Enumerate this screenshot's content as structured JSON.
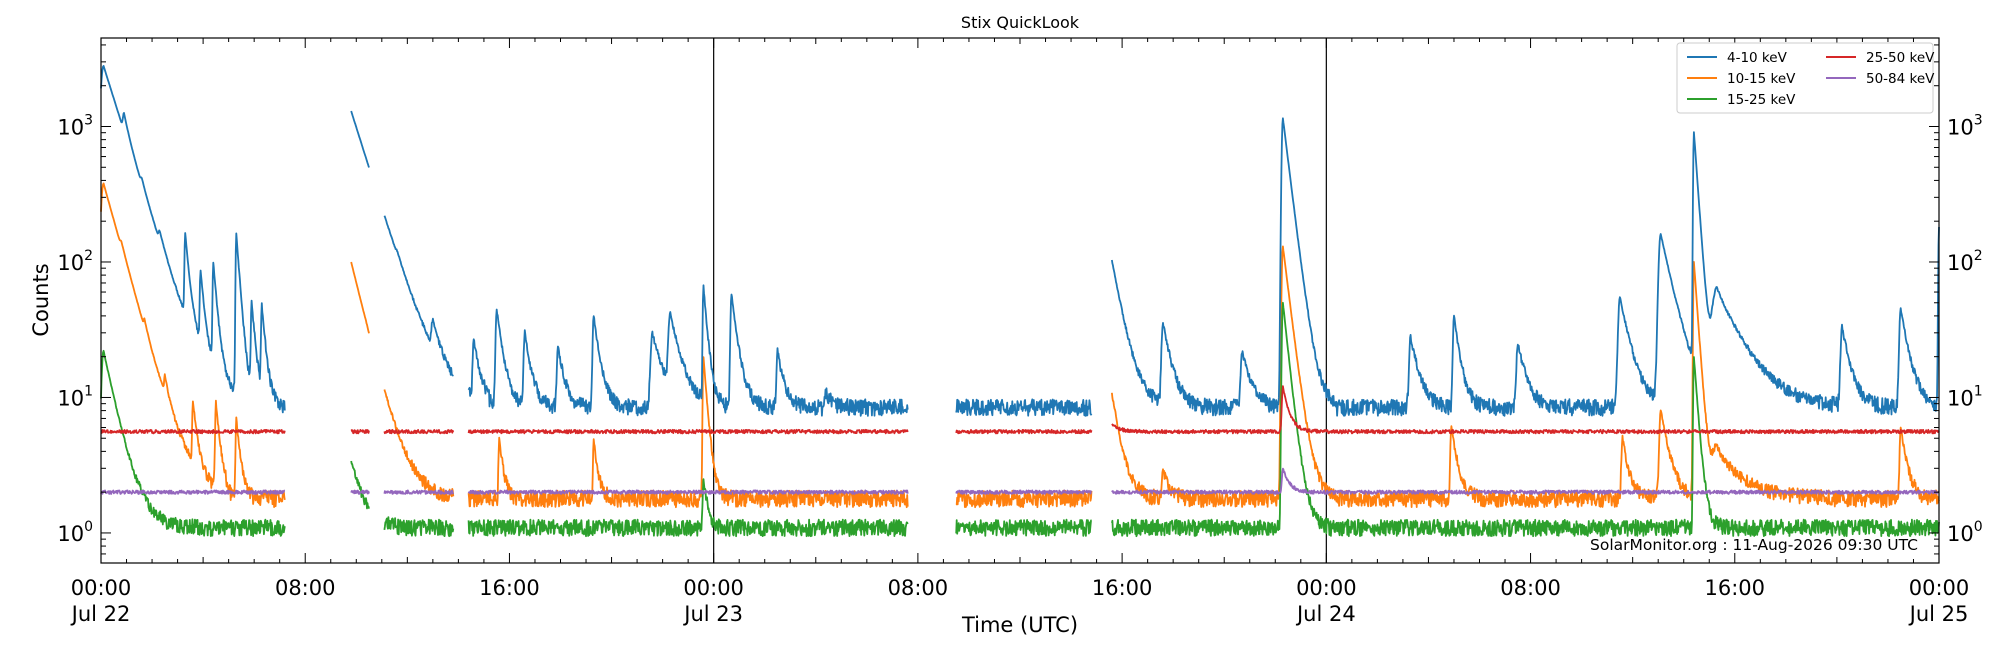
{
  "chart_data": {
    "type": "line",
    "title": "Stix QuickLook",
    "xlabel": "Time (UTC)",
    "ylabel": "Counts",
    "yscale": "log",
    "ylim": [
      0.6,
      4500
    ],
    "xlim_hours": [
      0,
      72
    ],
    "y_ticks": [
      {
        "value": 1,
        "base": "10",
        "exp": "0"
      },
      {
        "value": 10,
        "base": "10",
        "exp": "1"
      },
      {
        "value": 100,
        "base": "10",
        "exp": "2"
      },
      {
        "value": 1000,
        "base": "10",
        "exp": "3"
      }
    ],
    "x_ticks": [
      {
        "hour": 0,
        "time": "00:00",
        "date": "Jul 22"
      },
      {
        "hour": 8,
        "time": "08:00",
        "date": ""
      },
      {
        "hour": 16,
        "time": "16:00",
        "date": ""
      },
      {
        "hour": 24,
        "time": "00:00",
        "date": "Jul 23"
      },
      {
        "hour": 32,
        "time": "08:00",
        "date": ""
      },
      {
        "hour": 40,
        "time": "16:00",
        "date": ""
      },
      {
        "hour": 48,
        "time": "00:00",
        "date": "Jul 24"
      },
      {
        "hour": 56,
        "time": "08:00",
        "date": ""
      },
      {
        "hour": 64,
        "time": "16:00",
        "date": ""
      },
      {
        "hour": 72,
        "time": "00:00",
        "date": "Jul 25"
      }
    ],
    "day_boundaries_hours": [
      24,
      48
    ],
    "data_intervals_hours": [
      [
        0,
        7.2
      ],
      [
        9.8,
        10.5
      ],
      [
        11.1,
        13.8
      ],
      [
        14.4,
        31.6
      ],
      [
        33.5,
        38.8
      ],
      [
        39.6,
        72
      ]
    ],
    "legend_position": "top-right",
    "credit": "SolarMonitor.org : 11-Aug-2026 09:30 UTC",
    "series": [
      {
        "name": "4-10 keV",
        "color": "#1f77b4",
        "baseline": 8.5,
        "flares": [
          [
            0.1,
            2800,
            0.9
          ],
          [
            0.9,
            340,
            0.3
          ],
          [
            1.6,
            50,
            0.3
          ],
          [
            2.3,
            35,
            0.3
          ],
          [
            3.3,
            130,
            0.2
          ],
          [
            3.9,
            70,
            0.2
          ],
          [
            4.4,
            90,
            0.2
          ],
          [
            5.3,
            160,
            0.2
          ],
          [
            5.9,
            48,
            0.2
          ],
          [
            6.3,
            45,
            0.2
          ],
          [
            9.8,
            1300,
            0.9
          ],
          [
            11.6,
            15,
            0.3
          ],
          [
            13.0,
            22,
            0.4
          ],
          [
            14.6,
            25,
            0.3
          ],
          [
            15.5,
            45,
            0.3
          ],
          [
            16.6,
            30,
            0.3
          ],
          [
            17.9,
            24,
            0.3
          ],
          [
            19.3,
            40,
            0.3
          ],
          [
            21.6,
            30,
            0.5
          ],
          [
            22.3,
            38,
            0.5
          ],
          [
            23.6,
            65,
            0.2
          ],
          [
            24.7,
            58,
            0.3
          ],
          [
            26.5,
            22,
            0.3
          ],
          [
            28.4,
            11,
            0.3
          ],
          [
            39.5,
            130,
            0.5
          ],
          [
            41.6,
            35,
            0.4
          ],
          [
            44.7,
            22,
            0.4
          ],
          [
            46.3,
            1150,
            0.35
          ],
          [
            51.3,
            28,
            0.4
          ],
          [
            53.0,
            40,
            0.3
          ],
          [
            55.5,
            25,
            0.4
          ],
          [
            59.5,
            55,
            0.5
          ],
          [
            61.1,
            160,
            0.6
          ],
          [
            62.4,
            900,
            0.2
          ],
          [
            63.3,
            60,
            1.2
          ],
          [
            68.2,
            33,
            0.4
          ],
          [
            70.5,
            45,
            0.4
          ],
          [
            72.0,
            180,
            0.2
          ]
        ]
      },
      {
        "name": "10-15 keV",
        "color": "#ff7f0e",
        "baseline": 1.8,
        "flares": [
          [
            0.1,
            380,
            0.8
          ],
          [
            0.8,
            15,
            0.3
          ],
          [
            1.7,
            7,
            0.2
          ],
          [
            2.5,
            6,
            0.2
          ],
          [
            3.6,
            8,
            0.2
          ],
          [
            4.5,
            9,
            0.2
          ],
          [
            5.3,
            7,
            0.2
          ],
          [
            9.8,
            100,
            0.7
          ],
          [
            15.6,
            5,
            0.2
          ],
          [
            19.3,
            5,
            0.2
          ],
          [
            23.6,
            20,
            0.2
          ],
          [
            39.5,
            14,
            0.4
          ],
          [
            41.6,
            3,
            0.3
          ],
          [
            46.3,
            130,
            0.35
          ],
          [
            52.9,
            6,
            0.3
          ],
          [
            59.6,
            5,
            0.3
          ],
          [
            61.1,
            8,
            0.4
          ],
          [
            62.4,
            100,
            0.2
          ],
          [
            63.3,
            4,
            1.2
          ],
          [
            70.5,
            6,
            0.3
          ]
        ]
      },
      {
        "name": "15-25 keV",
        "color": "#2ca02c",
        "baseline": 1.1,
        "flares": [
          [
            0.1,
            22,
            0.6
          ],
          [
            9.8,
            3.5,
            0.5
          ],
          [
            23.6,
            2.5,
            0.2
          ],
          [
            46.3,
            50,
            0.3
          ],
          [
            62.4,
            20,
            0.2
          ]
        ]
      },
      {
        "name": "25-50 keV",
        "color": "#d62728",
        "baseline": 5.6,
        "flares": [
          [
            46.3,
            12,
            0.3
          ],
          [
            39.5,
            6.5,
            0.4
          ]
        ]
      },
      {
        "name": "50-84 keV",
        "color": "#9467bd",
        "baseline": 2.0,
        "flares": [
          [
            46.3,
            3,
            0.3
          ]
        ]
      }
    ]
  }
}
